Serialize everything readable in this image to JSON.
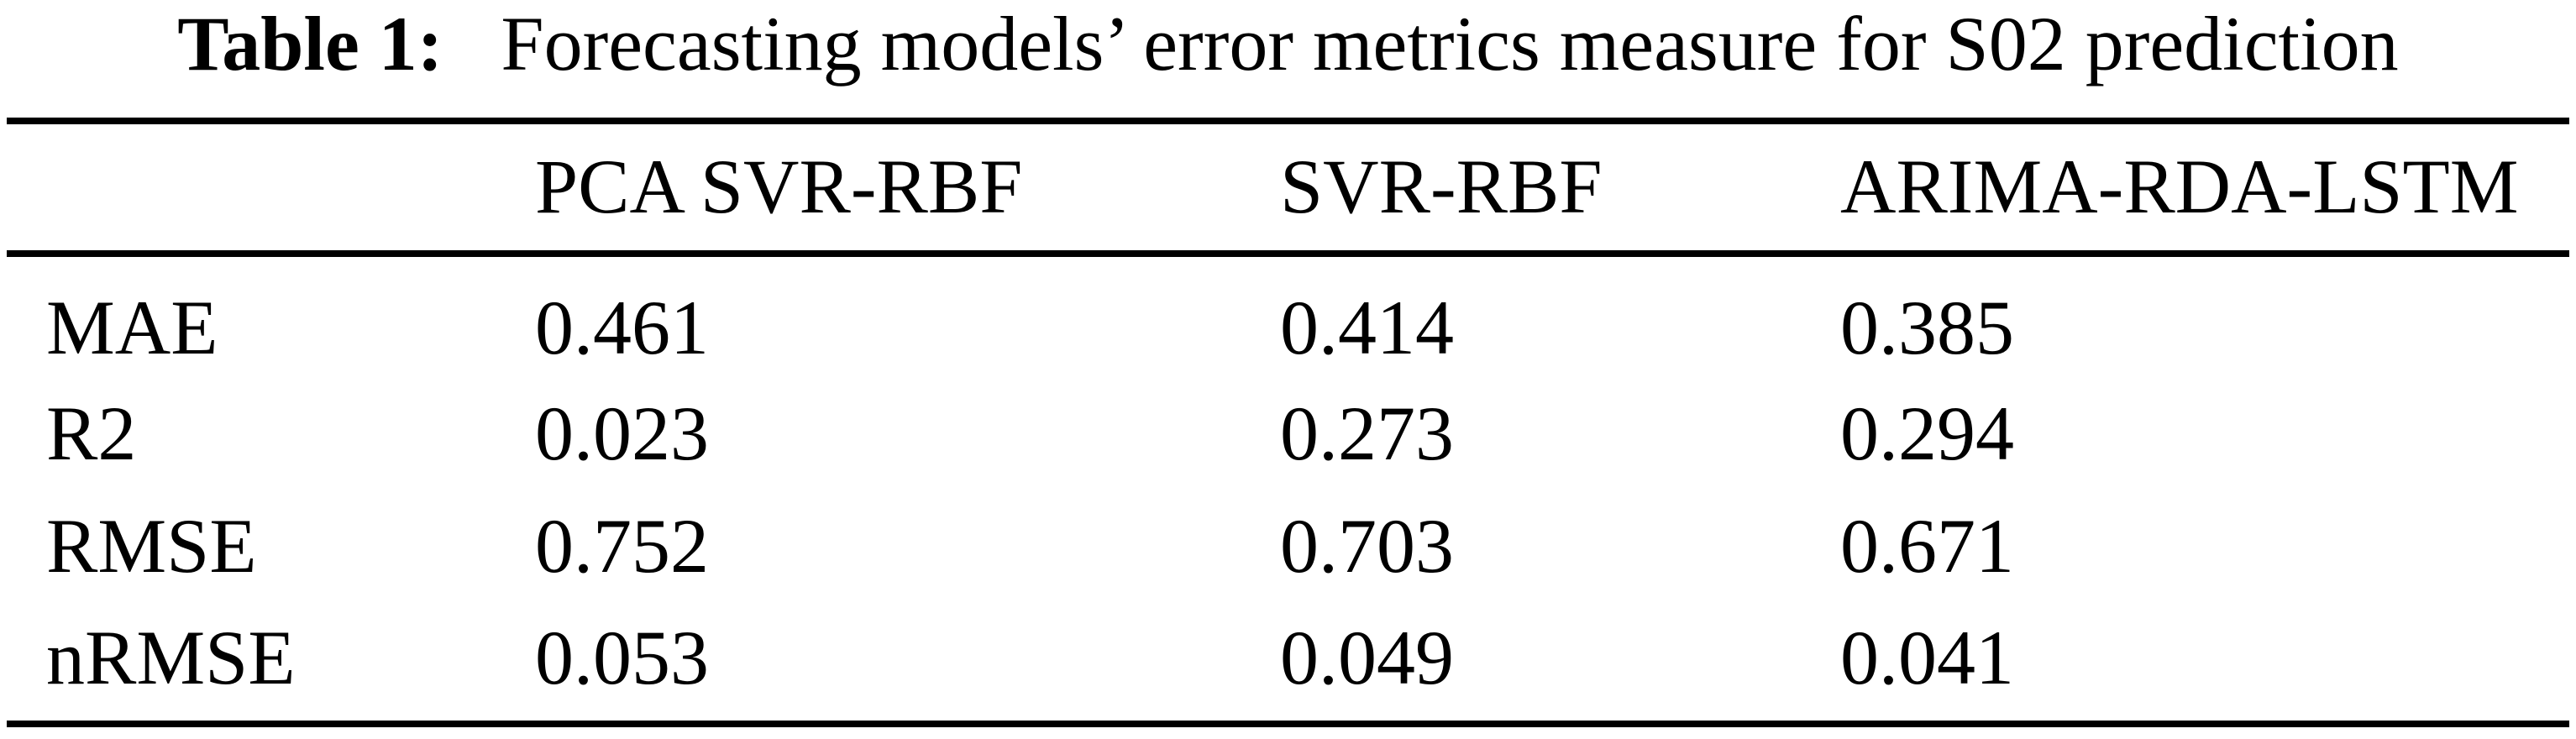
{
  "caption": {
    "label": "Table 1:",
    "text": "Forecasting models’ error metrics measure for S02 prediction"
  },
  "table": {
    "columns": [
      "PCA SVR-RBF",
      "SVR-RBF",
      "ARIMA-RDA-LSTM"
    ],
    "rows": [
      {
        "label": "MAE",
        "values": [
          "0.461",
          "0.414",
          "0.385"
        ]
      },
      {
        "label": "R2",
        "values": [
          "0.023",
          "0.273",
          "0.294"
        ]
      },
      {
        "label": "RMSE",
        "values": [
          "0.752",
          "0.703",
          "0.671"
        ]
      },
      {
        "label": "nRMSE",
        "values": [
          "0.053",
          "0.049",
          "0.041"
        ]
      }
    ]
  },
  "colors": {
    "text": "#000000",
    "background": "#ffffff",
    "rule": "#000000"
  }
}
